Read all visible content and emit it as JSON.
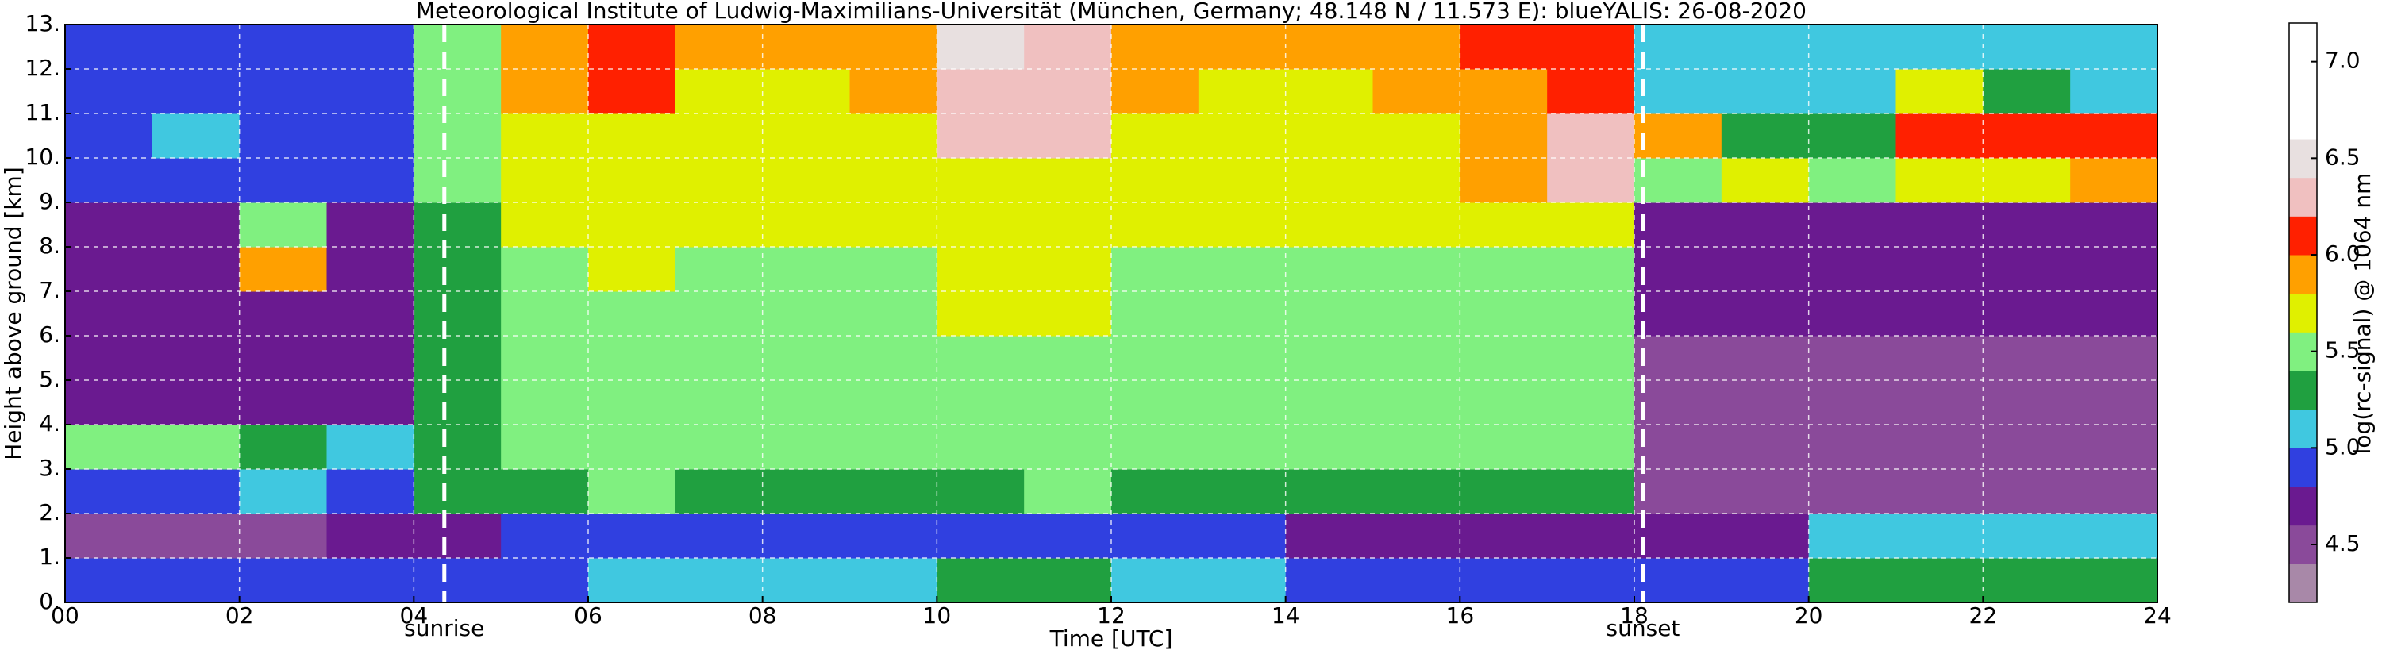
{
  "chart_data": {
    "type": "heatmap",
    "title": "Meteorological Institute of Ludwig-Maximilians-Universität (München, Germany; 48.148 N / 11.573 E):    blueYALIS: 26-08-2020",
    "xlabel": "Time [UTC]",
    "ylabel": "Height above ground [km]",
    "colorbar_label": "log(rc-signal) @ 1064 nm",
    "xlim": [
      0,
      24
    ],
    "ylim": [
      0,
      13
    ],
    "xticks": [
      {
        "value": 0,
        "label": "00"
      },
      {
        "value": 2,
        "label": "02"
      },
      {
        "value": 4,
        "label": "04"
      },
      {
        "value": 6,
        "label": "06"
      },
      {
        "value": 8,
        "label": "08"
      },
      {
        "value": 10,
        "label": "10"
      },
      {
        "value": 12,
        "label": "12"
      },
      {
        "value": 14,
        "label": "14"
      },
      {
        "value": 16,
        "label": "16"
      },
      {
        "value": 18,
        "label": "18"
      },
      {
        "value": 20,
        "label": "20"
      },
      {
        "value": 22,
        "label": "22"
      },
      {
        "value": 24,
        "label": "24"
      }
    ],
    "yticks": [
      {
        "value": 0,
        "label": "0."
      },
      {
        "value": 1,
        "label": "1."
      },
      {
        "value": 2,
        "label": "2."
      },
      {
        "value": 3,
        "label": "3."
      },
      {
        "value": 4,
        "label": "4."
      },
      {
        "value": 5,
        "label": "5."
      },
      {
        "value": 6,
        "label": "6."
      },
      {
        "value": 7,
        "label": "7."
      },
      {
        "value": 8,
        "label": "8."
      },
      {
        "value": 9,
        "label": "9."
      },
      {
        "value": 10,
        "label": "10."
      },
      {
        "value": 11,
        "label": "11."
      },
      {
        "value": 12,
        "label": "12."
      },
      {
        "value": 13,
        "label": "13."
      }
    ],
    "grid": true,
    "clim": [
      4.2,
      7.2
    ],
    "cticks": [
      4.5,
      {
        "value": 5,
        "label": "5.0"
      },
      5.5,
      {
        "value": 6,
        "label": "6.0"
      },
      6.5,
      {
        "value": 7,
        "label": "7.0"
      }
    ],
    "colors": [
      "#a888a8",
      "#8a4a9a",
      "#6a1a90",
      "#3040e0",
      "#40c8e0",
      "#20a040",
      "#80f080",
      "#e0f000",
      "#ffa000",
      "#ff2000",
      "#f0c0c0",
      "#e8e0e0",
      "#ffffff",
      "#ffffff",
      "#ffffff"
    ],
    "xbins": [
      0,
      1,
      2,
      3,
      4,
      5,
      6,
      7,
      8,
      9,
      10,
      11,
      12,
      13,
      14,
      15,
      16,
      17,
      18,
      19,
      20,
      21,
      22,
      23,
      24
    ],
    "ybins": [
      0,
      1,
      2,
      3,
      4,
      5,
      6,
      7,
      8,
      9,
      10,
      11,
      12,
      13
    ],
    "z": [
      [
        4.9,
        4.9,
        4.9,
        4.9,
        5.0,
        5.0,
        5.1,
        5.1,
        5.1,
        5.1,
        5.2,
        5.2,
        5.1,
        5.1,
        5.0,
        5.0,
        5.0,
        5.0,
        4.9,
        4.9,
        5.2,
        5.3,
        5.3,
        5.3
      ],
      [
        4.6,
        4.6,
        4.6,
        4.7,
        4.8,
        4.9,
        4.9,
        4.9,
        4.9,
        4.9,
        4.9,
        4.9,
        4.9,
        4.9,
        4.8,
        4.8,
        4.8,
        4.8,
        4.7,
        4.8,
        5.1,
        5.1,
        5.1,
        5.1
      ],
      [
        5.0,
        5.0,
        5.1,
        5.0,
        5.2,
        5.3,
        5.4,
        5.3,
        5.3,
        5.3,
        5.3,
        5.4,
        5.3,
        5.3,
        5.2,
        5.2,
        5.2,
        5.2,
        4.5,
        4.4,
        4.4,
        4.4,
        4.4,
        4.4
      ],
      [
        5.4,
        5.5,
        5.3,
        5.1,
        5.3,
        5.5,
        5.5,
        5.5,
        5.4,
        5.5,
        5.5,
        5.5,
        5.5,
        5.4,
        5.4,
        5.4,
        5.4,
        5.4,
        4.5,
        4.5,
        4.5,
        4.5,
        4.5,
        4.5
      ],
      [
        4.7,
        4.7,
        4.7,
        4.7,
        5.2,
        5.5,
        5.6,
        5.5,
        5.5,
        5.5,
        5.6,
        5.6,
        5.5,
        5.5,
        5.5,
        5.5,
        5.5,
        5.5,
        4.6,
        4.6,
        4.6,
        4.6,
        4.6,
        4.6
      ],
      [
        4.7,
        4.7,
        4.7,
        4.7,
        5.2,
        5.6,
        5.6,
        5.6,
        5.6,
        5.6,
        5.6,
        5.6,
        5.6,
        5.6,
        5.6,
        5.6,
        5.6,
        5.6,
        4.6,
        4.6,
        4.6,
        4.6,
        4.6,
        4.6
      ],
      [
        4.8,
        4.7,
        4.7,
        4.7,
        5.3,
        5.6,
        5.6,
        5.6,
        5.6,
        5.6,
        5.7,
        5.7,
        5.6,
        5.6,
        5.6,
        5.6,
        5.6,
        5.6,
        4.7,
        4.7,
        4.7,
        4.7,
        4.7,
        4.7
      ],
      [
        4.8,
        4.8,
        5.9,
        4.8,
        5.3,
        5.6,
        5.7,
        5.6,
        5.6,
        5.6,
        5.7,
        5.7,
        5.6,
        5.6,
        5.6,
        5.6,
        5.6,
        5.6,
        4.7,
        4.7,
        4.7,
        4.7,
        4.7,
        4.7
      ],
      [
        4.8,
        4.8,
        5.4,
        4.8,
        5.3,
        5.7,
        5.7,
        5.7,
        5.7,
        5.7,
        5.8,
        5.8,
        5.7,
        5.7,
        5.7,
        5.7,
        5.7,
        5.8,
        4.8,
        4.8,
        4.8,
        4.8,
        4.8,
        4.8
      ],
      [
        4.9,
        4.9,
        4.9,
        4.9,
        5.4,
        5.7,
        5.8,
        5.7,
        5.7,
        5.8,
        5.8,
        5.8,
        5.7,
        5.7,
        5.7,
        5.8,
        5.9,
        6.2,
        5.6,
        5.7,
        5.6,
        5.8,
        5.8,
        5.9
      ],
      [
        5.0,
        5.1,
        5.0,
        4.9,
        5.4,
        5.8,
        5.8,
        5.8,
        5.8,
        5.8,
        6.2,
        6.2,
        5.8,
        5.8,
        5.8,
        5.8,
        5.9,
        6.2,
        5.9,
        5.2,
        5.3,
        6.1,
        6.0,
        6.1
      ],
      [
        5.0,
        5.0,
        5.0,
        5.0,
        5.5,
        5.9,
        6.0,
        5.8,
        5.8,
        5.9,
        6.3,
        6.2,
        5.9,
        5.8,
        5.8,
        5.9,
        5.9,
        6.0,
        5.1,
        5.1,
        5.1,
        5.8,
        5.2,
        5.1
      ],
      [
        5.0,
        5.0,
        5.0,
        5.0,
        5.5,
        5.9,
        6.1,
        5.9,
        5.9,
        5.9,
        6.4,
        6.2,
        5.9,
        5.9,
        5.9,
        5.9,
        6.0,
        6.0,
        5.1,
        5.1,
        5.1,
        5.1,
        5.1,
        5.1
      ]
    ],
    "annotations": [
      {
        "text": "sunrise",
        "x": 4.35
      },
      {
        "text": "sunset",
        "x": 18.1
      }
    ]
  }
}
